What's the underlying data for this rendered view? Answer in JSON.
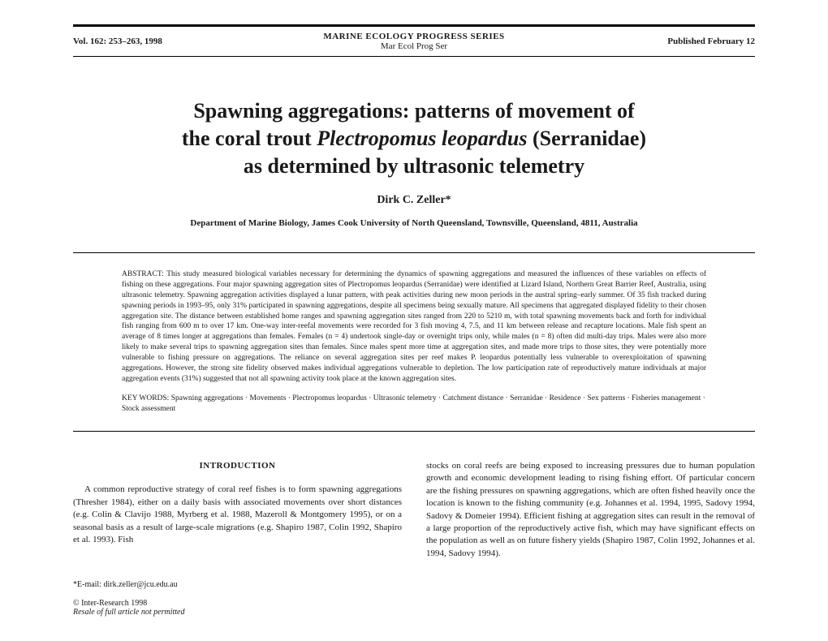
{
  "header": {
    "volume": "Vol. 162: 253–263, 1998",
    "series": "MARINE ECOLOGY PROGRESS SERIES",
    "abbrev": "Mar Ecol Prog Ser",
    "published": "Published February 12"
  },
  "title": {
    "line1": "Spawning aggregations: patterns of movement of",
    "line2_pre": "the coral trout ",
    "line2_species": "Plectropomus leopardus",
    "line2_post": " (Serranidae)",
    "line3": "as determined by ultrasonic telemetry"
  },
  "author": "Dirk C. Zeller*",
  "affiliation": "Department of Marine Biology, James Cook University of North Queensland, Townsville, Queensland, 4811, Australia",
  "abstract": {
    "label": "ABSTRACT:",
    "text": " This study measured biological variables necessary for determining the dynamics of spawning aggregations and measured the influences of these variables on effects of fishing on these aggregations. Four major spawning aggregation sites of Plectropomus leopardus (Serranidae) were identified at Lizard Island, Northern Great Barrier Reef, Australia, using ultrasonic telemetry. Spawning aggregation activities displayed a lunar pattern, with peak activities during new moon periods in the austral spring–early summer. Of 35 fish tracked during spawning periods in 1993–95, only 31% participated in spawning aggregations, despite all specimens being sexually mature. All specimens that aggregated displayed fidelity to their chosen aggregation site. The distance between established home ranges and spawning aggregation sites ranged from 220 to 5210 m, with total spawning movements back and forth for individual fish ranging from 600 m to over 17 km. One-way inter-reefal movements were recorded for 3 fish moving 4, 7.5, and 11 km between release and recapture locations. Male fish spent an average of 8 times longer at aggregations than females. Females (n = 4) undertook single-day or overnight trips only, while males (n = 8) often did multi-day trips. Males were also more likely to make several trips to spawning aggregation sites than females. Since males spent more time at aggregation sites, and made more trips to those sites, they were potentially more vulnerable to fishing pressure on aggregations. The reliance on several aggregation sites per reef makes P. leopardus potentially less vulnerable to overexploitation of spawning aggregations. However, the strong site fidelity observed makes individual aggregations vulnerable to depletion. The low participation rate of reproductively mature individuals at major aggregation events (31%) suggested that not all spawning activity took place at the known aggregation sites."
  },
  "keywords": {
    "label": "KEY WORDS:",
    "text": " Spawning aggregations · Movements · Plectropomus leopardus · Ultrasonic telemetry · Catchment distance · Serranidae · Residence · Sex patterns · Fisheries management · Stock assessment"
  },
  "body": {
    "section_heading": "INTRODUCTION",
    "col1": "A common reproductive strategy of coral reef fishes is to form spawning aggregations (Thresher 1984), either on a daily basis with associated movements over short distances (e.g. Colin & Clavijo 1988, Myrberg et al. 1988, Mazeroll & Montgomery 1995), or on a seasonal basis as a result of large-scale migrations (e.g. Shapiro 1987, Colin 1992, Shapiro et al. 1993). Fish",
    "col2": "stocks on coral reefs are being exposed to increasing pressures due to human population growth and economic development leading to rising fishing effort. Of particular concern are the fishing pressures on spawning aggregations, which are often fished heavily once the location is known to the fishing community (e.g. Johannes et al. 1994, 1995, Sadovy 1994, Sadovy & Domeier 1994). Efficient fishing at aggregation sites can result in the removal of a large proportion of the reproductively active fish, which may have significant effects on the population as well as on future fishery yields (Shapiro 1987, Colin 1992, Johannes et al. 1994, Sadovy 1994)."
  },
  "footer": {
    "email": "*E-mail: dirk.zeller@jcu.edu.au",
    "copyright": "© Inter-Research 1998",
    "resale": "Resale of full article not permitted"
  }
}
